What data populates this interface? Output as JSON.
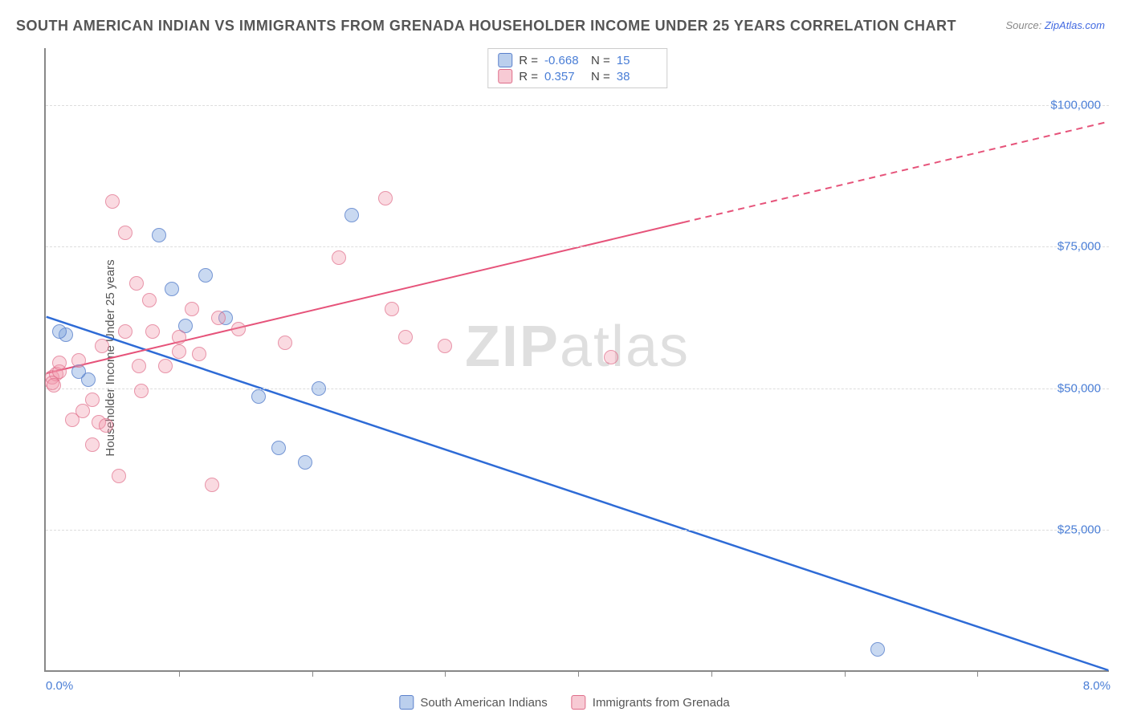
{
  "title": "SOUTH AMERICAN INDIAN VS IMMIGRANTS FROM GRENADA HOUSEHOLDER INCOME UNDER 25 YEARS CORRELATION CHART",
  "source_label": "Source: ",
  "source_value": "ZipAtlas.com",
  "y_axis_label": "Householder Income Under 25 years",
  "watermark_bold": "ZIP",
  "watermark_light": "atlas",
  "chart": {
    "type": "scatter",
    "xlim": [
      0,
      8
    ],
    "ylim": [
      0,
      110000
    ],
    "background_color": "#ffffff",
    "grid_color": "#dddddd",
    "axis_color": "#888888",
    "point_radius": 9,
    "yticks": [
      {
        "value": 25000,
        "label": "$25,000"
      },
      {
        "value": 50000,
        "label": "$50,000"
      },
      {
        "value": 75000,
        "label": "$75,000"
      },
      {
        "value": 100000,
        "label": "$100,000"
      }
    ],
    "xtick_positions": [
      1,
      2,
      3,
      4,
      5,
      6,
      7
    ],
    "xtick_labels": [
      {
        "value": 0,
        "label": "0.0%"
      },
      {
        "value": 8,
        "label": "8.0%"
      }
    ],
    "trend_lines": {
      "blue": {
        "x1": 0,
        "y1": 62500,
        "x2": 8,
        "y2": 0,
        "color": "#2E6BD6",
        "width": 2.5,
        "dash_after_x": null
      },
      "pink": {
        "x1": 0,
        "y1": 52500,
        "x2": 8,
        "y2": 97000,
        "color": "#E6537A",
        "width": 2,
        "dash_after_x": 4.8
      }
    },
    "series": [
      {
        "name": "South American Indians",
        "color_class": "blue",
        "fill": "rgba(120,160,220,0.4)",
        "stroke": "rgba(80,120,200,0.7)",
        "R": "-0.668",
        "N": "15",
        "points": [
          [
            0.15,
            59500
          ],
          [
            0.32,
            51500
          ],
          [
            0.25,
            53000
          ],
          [
            0.85,
            77000
          ],
          [
            0.95,
            67500
          ],
          [
            1.2,
            70000
          ],
          [
            1.05,
            61000
          ],
          [
            1.6,
            48500
          ],
          [
            1.75,
            39500
          ],
          [
            1.95,
            37000
          ],
          [
            2.3,
            80500
          ],
          [
            2.05,
            50000
          ],
          [
            1.35,
            62500
          ],
          [
            6.25,
            4000
          ],
          [
            0.1,
            60000
          ]
        ]
      },
      {
        "name": "Immigrants from Grenada",
        "color_class": "pink",
        "fill": "rgba(240,150,170,0.35)",
        "stroke": "rgba(220,100,130,0.6)",
        "R": "0.357",
        "N": "38",
        "points": [
          [
            0.05,
            52000
          ],
          [
            0.08,
            52500
          ],
          [
            0.05,
            51000
          ],
          [
            0.06,
            50500
          ],
          [
            0.1,
            53000
          ],
          [
            0.1,
            54500
          ],
          [
            0.2,
            44500
          ],
          [
            0.25,
            55000
          ],
          [
            0.28,
            46000
          ],
          [
            0.35,
            40000
          ],
          [
            0.4,
            44000
          ],
          [
            0.35,
            48000
          ],
          [
            0.45,
            43500
          ],
          [
            0.42,
            57500
          ],
          [
            0.5,
            83000
          ],
          [
            0.55,
            34500
          ],
          [
            0.6,
            77500
          ],
          [
            0.6,
            60000
          ],
          [
            0.68,
            68500
          ],
          [
            0.7,
            54000
          ],
          [
            0.72,
            49500
          ],
          [
            0.78,
            65500
          ],
          [
            0.8,
            60000
          ],
          [
            0.9,
            54000
          ],
          [
            1.0,
            56500
          ],
          [
            1.0,
            59000
          ],
          [
            1.1,
            64000
          ],
          [
            1.15,
            56000
          ],
          [
            1.25,
            33000
          ],
          [
            1.3,
            62500
          ],
          [
            1.45,
            60500
          ],
          [
            1.8,
            58000
          ],
          [
            2.2,
            73000
          ],
          [
            2.55,
            83500
          ],
          [
            2.6,
            64000
          ],
          [
            2.7,
            59000
          ],
          [
            3.0,
            57500
          ],
          [
            4.25,
            55500
          ]
        ]
      }
    ]
  },
  "legend_top_R_label": "R =",
  "legend_top_N_label": "N =",
  "legend_bottom": [
    {
      "class": "blue",
      "label": "South American Indians"
    },
    {
      "class": "pink",
      "label": "Immigrants from Grenada"
    }
  ]
}
